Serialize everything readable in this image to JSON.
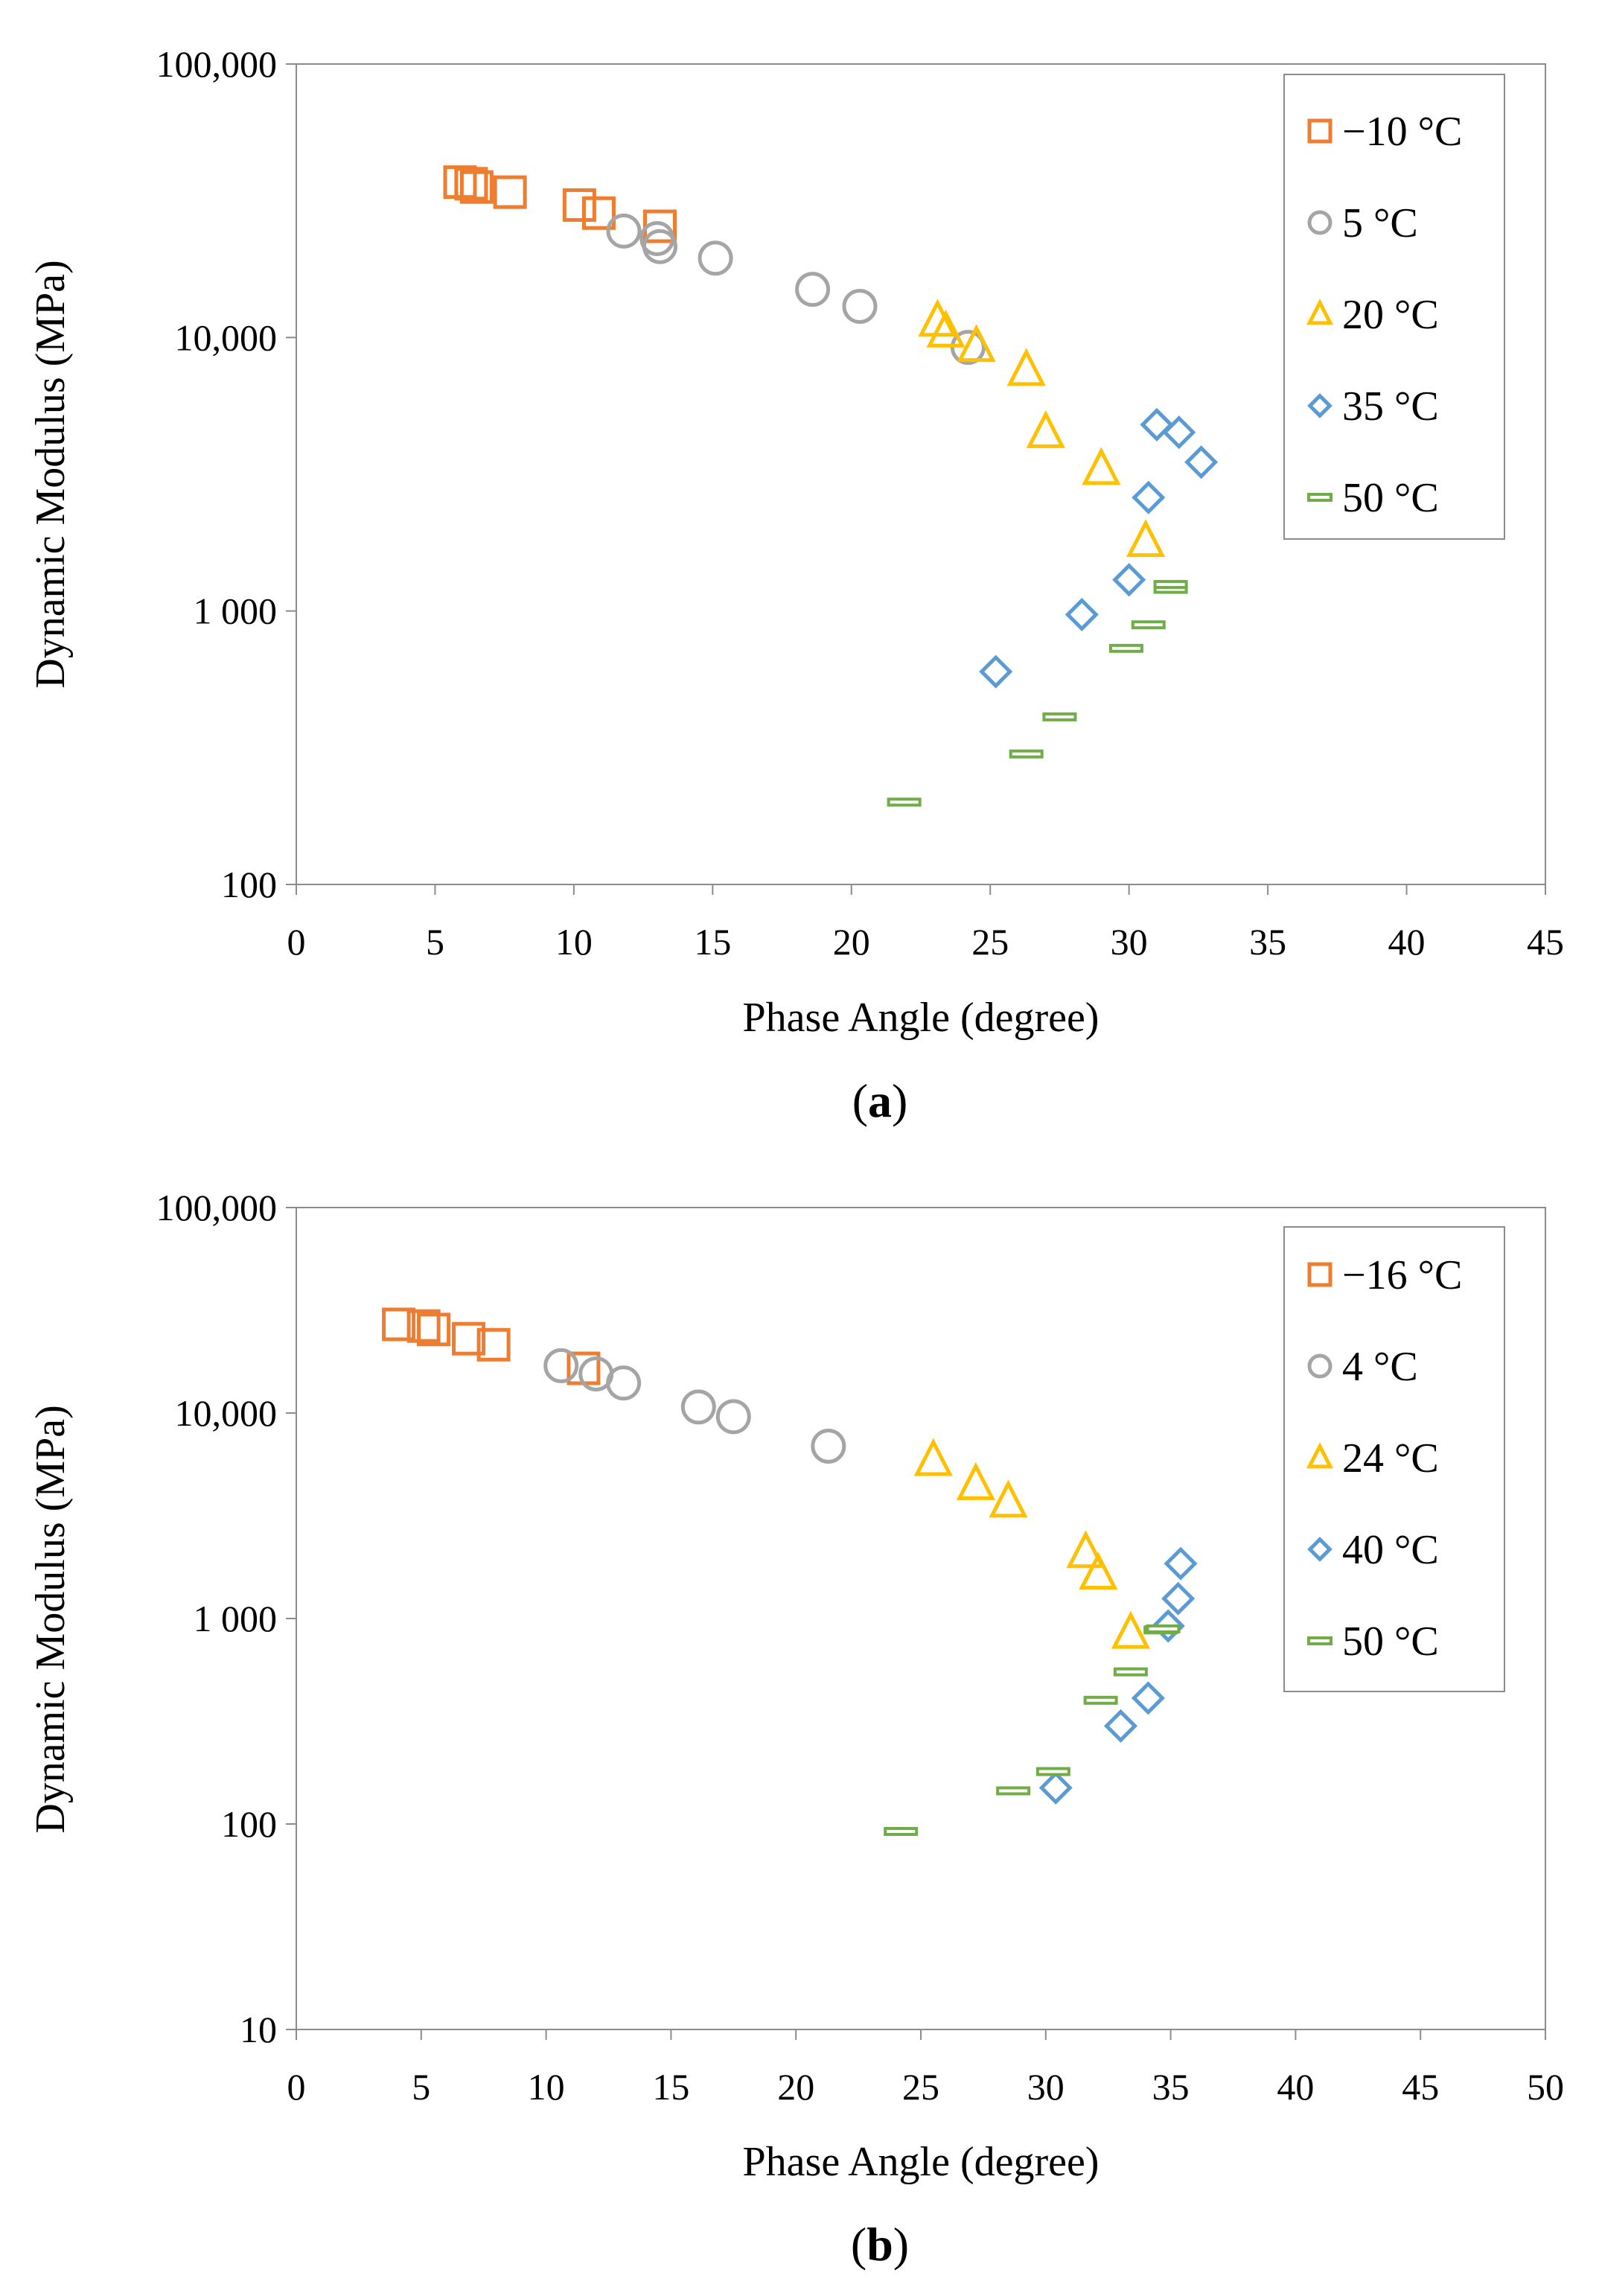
{
  "chart_data": [
    {
      "type": "scatter",
      "caption": "(a)",
      "caption_letter": "a",
      "xlabel": "Phase Angle (degree)",
      "ylabel": "Dynamic Modulus (MPa)",
      "xlim": [
        0,
        45
      ],
      "ylim": [
        100,
        100000
      ],
      "yscale": "log",
      "grid": false,
      "legend": "top-right",
      "x_ticks": [
        "0",
        "5",
        "10",
        "15",
        "20",
        "25",
        "30",
        "35",
        "40",
        "45"
      ],
      "y_ticks": [
        {
          "value": 100000,
          "label": "100,000"
        },
        {
          "value": 10000,
          "label": "10,000"
        },
        {
          "value": 1000,
          "label": "1 000"
        },
        {
          "value": 100,
          "label": "100"
        }
      ],
      "series": [
        {
          "name": "−10 °C",
          "marker": "square",
          "color": "#ED7D31",
          "points": [
            [
              5.9,
              37000
            ],
            [
              6.3,
              36500
            ],
            [
              6.5,
              35500
            ],
            [
              7.7,
              34000
            ],
            [
              10.2,
              30500
            ],
            [
              10.9,
              28500
            ],
            [
              13.1,
              25500
            ]
          ]
        },
        {
          "name": "5 °C",
          "marker": "circle",
          "color": "#A5A5A5",
          "points": [
            [
              11.8,
              24500
            ],
            [
              13.0,
              23000
            ],
            [
              13.1,
              21500
            ],
            [
              15.1,
              19500
            ],
            [
              18.6,
              15000
            ],
            [
              20.3,
              13000
            ],
            [
              24.2,
              9200
            ]
          ]
        },
        {
          "name": "20 °C",
          "marker": "triangle",
          "color": "#FFC000",
          "points": [
            [
              23.1,
              11500
            ],
            [
              23.4,
              10500
            ],
            [
              24.5,
              9300
            ],
            [
              26.3,
              7600
            ],
            [
              27.0,
              4500
            ],
            [
              29.0,
              3300
            ],
            [
              30.6,
              1800
            ]
          ]
        },
        {
          "name": "35 °C",
          "marker": "diamond",
          "color": "#5B9BD5",
          "points": [
            [
              25.2,
              600
            ],
            [
              28.3,
              970
            ],
            [
              30.0,
              1300
            ],
            [
              30.7,
              2600
            ],
            [
              31.0,
              4800
            ],
            [
              31.8,
              4500
            ],
            [
              32.6,
              3500
            ]
          ]
        },
        {
          "name": "50 °C",
          "marker": "dash",
          "color": "#70AD47",
          "points": [
            [
              21.9,
              200
            ],
            [
              26.3,
              300
            ],
            [
              27.5,
              410
            ],
            [
              29.9,
              730
            ],
            [
              30.7,
              890
            ],
            [
              31.5,
              1200
            ],
            [
              31.5,
              1250
            ]
          ]
        }
      ]
    },
    {
      "type": "scatter",
      "caption": "(b)",
      "caption_letter": "b",
      "xlabel": "Phase Angle (degree)",
      "ylabel": "Dynamic Modulus (MPa)",
      "xlim": [
        0,
        50
      ],
      "ylim": [
        10,
        100000
      ],
      "yscale": "log",
      "grid": false,
      "legend": "top-right",
      "x_ticks": [
        "0",
        "5",
        "10",
        "15",
        "20",
        "25",
        "30",
        "35",
        "40",
        "45",
        "50"
      ],
      "y_ticks": [
        {
          "value": 100000,
          "label": "100,000"
        },
        {
          "value": 10000,
          "label": "10,000"
        },
        {
          "value": 1000,
          "label": "1 000"
        },
        {
          "value": 100,
          "label": "100"
        },
        {
          "value": 10,
          "label": "10"
        }
      ],
      "series": [
        {
          "name": "−16 °C",
          "marker": "square",
          "color": "#ED7D31",
          "points": [
            [
              4.1,
              27000
            ],
            [
              5.1,
              26500
            ],
            [
              5.5,
              25500
            ],
            [
              6.9,
              23000
            ],
            [
              7.9,
              21500
            ],
            [
              11.5,
              16500
            ]
          ]
        },
        {
          "name": "4 °C",
          "marker": "circle",
          "color": "#A5A5A5",
          "points": [
            [
              10.6,
              17000
            ],
            [
              12.0,
              15500
            ],
            [
              13.1,
              14000
            ],
            [
              16.1,
              10700
            ],
            [
              17.5,
              9600
            ],
            [
              21.3,
              6900
            ]
          ]
        },
        {
          "name": "24 °C",
          "marker": "triangle",
          "color": "#FFC000",
          "points": [
            [
              25.5,
              5900
            ],
            [
              27.2,
              4500
            ],
            [
              28.5,
              3700
            ],
            [
              31.6,
              2100
            ],
            [
              32.1,
              1650
            ],
            [
              33.4,
              850
            ]
          ]
        },
        {
          "name": "40 °C",
          "marker": "diamond",
          "color": "#5B9BD5",
          "points": [
            [
              30.4,
              150
            ],
            [
              33.0,
              300
            ],
            [
              34.1,
              410
            ],
            [
              34.9,
              920
            ],
            [
              35.3,
              1250
            ],
            [
              35.4,
              1850
            ]
          ]
        },
        {
          "name": "50 °C",
          "marker": "dash",
          "color": "#70AD47",
          "points": [
            [
              24.2,
              92
            ],
            [
              28.7,
              145
            ],
            [
              30.3,
              180
            ],
            [
              32.2,
              400
            ],
            [
              33.4,
              550
            ],
            [
              34.6,
              880
            ],
            [
              34.7,
              890
            ]
          ]
        }
      ]
    }
  ]
}
